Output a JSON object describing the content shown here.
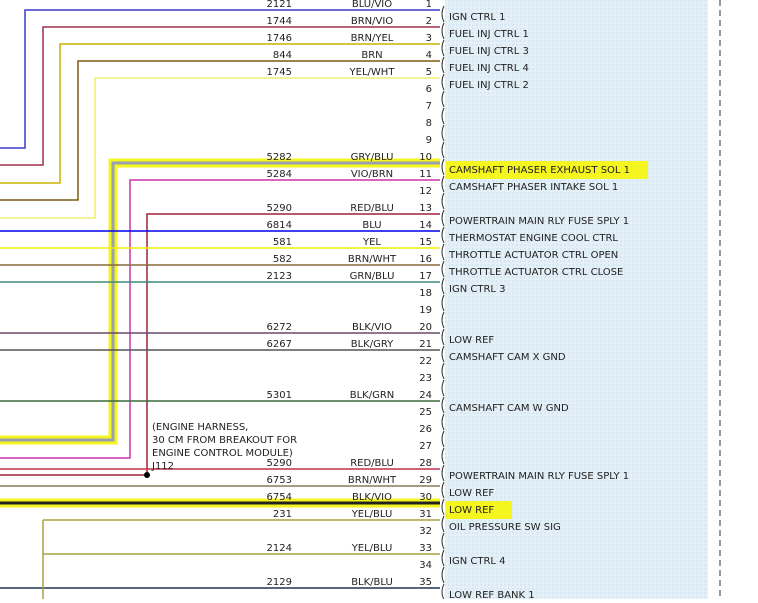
{
  "connector": {
    "pins": [
      {
        "pin": 1,
        "circuit": 2121,
        "wire": "BLU/VIO",
        "function": "IGN CTRL 1",
        "color": "#3a3acc"
      },
      {
        "pin": 2,
        "circuit": 1744,
        "wire": "BRN/VIO",
        "function": "FUEL INJ CTRL 1",
        "color": "#a0304a"
      },
      {
        "pin": 3,
        "circuit": 1746,
        "wire": "BRN/YEL",
        "function": "FUEL INJ CTRL 3",
        "color": "#c8b400"
      },
      {
        "pin": 4,
        "circuit": 844,
        "wire": "BRN",
        "function": "FUEL INJ CTRL 4",
        "color": "#7a5a10"
      },
      {
        "pin": 5,
        "circuit": 1745,
        "wire": "YEL/WHT",
        "function": "FUEL INJ CTRL 2",
        "color": "#f2ee70"
      },
      {
        "pin": 6
      },
      {
        "pin": 7
      },
      {
        "pin": 8
      },
      {
        "pin": 9
      },
      {
        "pin": 10,
        "circuit": 5282,
        "wire": "GRY/BLU",
        "function": "CAMSHAFT PHASER EXHAUST SOL 1",
        "color": "#9aa0b0",
        "highlight": true
      },
      {
        "pin": 11,
        "circuit": 5284,
        "wire": "VIO/BRN",
        "function": "CAMSHAFT PHASER INTAKE SOL 1",
        "color": "#cc33aa"
      },
      {
        "pin": 12
      },
      {
        "pin": 13,
        "circuit": 5290,
        "wire": "RED/BLU",
        "function": "POWERTRAIN MAIN RLY FUSE SPLY 1",
        "color": "#a0203a"
      },
      {
        "pin": 14,
        "circuit": 6814,
        "wire": "BLU",
        "function": "THERMOSTAT ENGINE COOL CTRL",
        "color": "#0000ee"
      },
      {
        "pin": 15,
        "circuit": 581,
        "wire": "YEL",
        "function": "THROTTLE ACTUATOR CTRL OPEN",
        "color": "#f0f000"
      },
      {
        "pin": 16,
        "circuit": 582,
        "wire": "BRN/WHT",
        "function": "THROTTLE ACTUATOR CTRL CLOSE",
        "color": "#8a6a3a"
      },
      {
        "pin": 17,
        "circuit": 2123,
        "wire": "GRN/BLU",
        "function": "IGN CTRL 3",
        "color": "#3a8a7a"
      },
      {
        "pin": 18
      },
      {
        "pin": 19
      },
      {
        "pin": 20,
        "circuit": 6272,
        "wire": "BLK/VIO",
        "function": "LOW REF",
        "color": "#6a4a6a"
      },
      {
        "pin": 21,
        "circuit": 6267,
        "wire": "BLK/GRY",
        "function": "CAMSHAFT CAM X GND",
        "color": "#555555"
      },
      {
        "pin": 22
      },
      {
        "pin": 23
      },
      {
        "pin": 24,
        "circuit": 5301,
        "wire": "BLK/GRN",
        "function": "CAMSHAFT CAM W GND",
        "color": "#3a6a3a"
      },
      {
        "pin": 25
      },
      {
        "pin": 26
      },
      {
        "pin": 27
      },
      {
        "pin": 28,
        "circuit": 5290,
        "wire": "RED/BLU",
        "function": "POWERTRAIN MAIN RLY FUSE SPLY 1",
        "color": "#c0304a"
      },
      {
        "pin": 29,
        "circuit": 6753,
        "wire": "BRN/WHT",
        "function": "LOW REF",
        "color": "#8a7a5a"
      },
      {
        "pin": 30,
        "circuit": 6754,
        "wire": "BLK/VIO",
        "function": "LOW REF",
        "color": "#222222",
        "highlight": true
      },
      {
        "pin": 31,
        "circuit": 231,
        "wire": "YEL/BLU",
        "function": "OIL PRESSURE SW SIG",
        "color": "#a8a040"
      },
      {
        "pin": 32
      },
      {
        "pin": 33,
        "circuit": 2124,
        "wire": "YEL/BLU",
        "function": "IGN CTRL 4",
        "color": "#a8a040"
      },
      {
        "pin": 34
      },
      {
        "pin": 35,
        "circuit": 2129,
        "wire": "BLK/BLU",
        "function": "LOW REF BANK 1",
        "color": "#223355"
      }
    ]
  },
  "splice": {
    "note": [
      "(ENGINE HARNESS,",
      "30 CM FROM BREAKOUT FOR",
      "ENGINE CONTROL MODULE)"
    ],
    "id": "J112"
  }
}
